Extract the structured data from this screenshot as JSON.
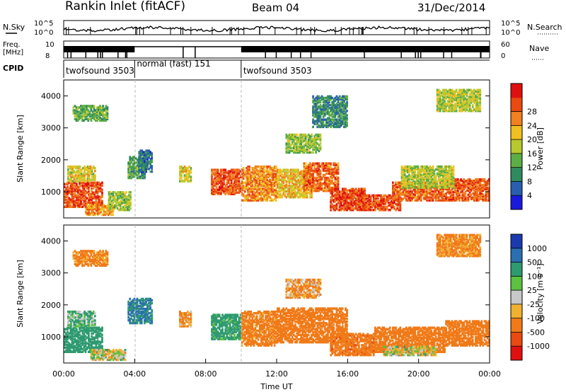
{
  "header": {
    "station": "Rankin Inlet (fitACF)",
    "beam": "Beam 04",
    "date": "31/Dec/2014"
  },
  "panels": {
    "nsky": {
      "label": "N.Sky",
      "tick_top": "10^5",
      "tick_bottom": "10^0",
      "right_tick_top": "10^5",
      "right_tick_bottom": "10^0",
      "right_label": "N.Search"
    },
    "freq": {
      "label_line1": "Freq.",
      "label_line2": "[MHz]",
      "tick_top": "10",
      "tick_bottom": "8",
      "right_tick_top": "60",
      "right_tick_bottom": "0",
      "right_label": "Nave"
    },
    "cpid": {
      "label": "CPID",
      "modes": [
        {
          "text": "twofsound 3503",
          "start_h": 0.0
        },
        {
          "text": "normal (fast) 151",
          "start_h": 4.0
        },
        {
          "text": "twofsound 3503",
          "start_h": 10.0
        }
      ]
    }
  },
  "axes": {
    "y_label": "Slant Range [km]",
    "y_ticks": [
      "1000",
      "2000",
      "3000",
      "4000"
    ],
    "x_label": "Time UT",
    "x_ticks": [
      "00:00",
      "04:00",
      "08:00",
      "12:00",
      "16:00",
      "20:00",
      "00:00"
    ]
  },
  "colorbars": {
    "power": {
      "label": "Power [dB]",
      "ticks": [
        "4",
        "8",
        "12",
        "16",
        "20",
        "24",
        "28"
      ],
      "colors": [
        "#1a1adc",
        "#2a5fb0",
        "#2f8a60",
        "#5cad45",
        "#b8c830",
        "#f0c020",
        "#f08020",
        "#e84a10",
        "#e01010"
      ]
    },
    "velocity": {
      "label": "Velocity [m s⁻¹]",
      "ticks": [
        "1000",
        "500",
        "100",
        "25",
        "-25",
        "-100",
        "-500",
        "-1000"
      ],
      "colors": [
        "#1a3ab0",
        "#2a6fb0",
        "#2f9a70",
        "#5cc040",
        "#c8c8c8",
        "#f0b030",
        "#f07a18",
        "#e84a10",
        "#e01010"
      ]
    }
  },
  "chart_data": [
    {
      "type": "heatmap",
      "title": "Power [dB]",
      "xlabel": "Time UT",
      "ylabel": "Slant Range [km]",
      "xlim_hours": [
        0,
        24
      ],
      "ylim_km": [
        180,
        4500
      ],
      "regions": [
        {
          "t": [
            0.0,
            2.2
          ],
          "r": [
            500,
            1300
          ],
          "v": 28
        },
        {
          "t": [
            0.2,
            1.8
          ],
          "r": [
            1300,
            1800
          ],
          "v": 18
        },
        {
          "t": [
            0.5,
            2.5
          ],
          "r": [
            3200,
            3700
          ],
          "v": 12
        },
        {
          "t": [
            1.2,
            2.8
          ],
          "r": [
            250,
            600
          ],
          "v": 24
        },
        {
          "t": [
            2.5,
            3.8
          ],
          "r": [
            400,
            1000
          ],
          "v": 14
        },
        {
          "t": [
            3.6,
            4.6
          ],
          "r": [
            1400,
            2100
          ],
          "v": 10
        },
        {
          "t": [
            4.2,
            5.0
          ],
          "r": [
            1600,
            2300
          ],
          "v": 6
        },
        {
          "t": [
            6.5,
            7.2
          ],
          "r": [
            1300,
            1800
          ],
          "v": 18
        },
        {
          "t": [
            8.3,
            10.0
          ],
          "r": [
            900,
            1700
          ],
          "v": 27
        },
        {
          "t": [
            10.0,
            12.0
          ],
          "r": [
            700,
            1800
          ],
          "v": 24
        },
        {
          "t": [
            12.0,
            14.0
          ],
          "r": [
            800,
            1700
          ],
          "v": 20
        },
        {
          "t": [
            13.5,
            15.5
          ],
          "r": [
            1000,
            1900
          ],
          "v": 26
        },
        {
          "t": [
            15.0,
            17.0
          ],
          "r": [
            400,
            1100
          ],
          "v": 28
        },
        {
          "t": [
            16.5,
            19.0
          ],
          "r": [
            400,
            900
          ],
          "v": 28
        },
        {
          "t": [
            18.5,
            21.5
          ],
          "r": [
            700,
            1300
          ],
          "v": 26
        },
        {
          "t": [
            21.5,
            24.0
          ],
          "r": [
            700,
            1400
          ],
          "v": 27
        },
        {
          "t": [
            19.0,
            22.0
          ],
          "r": [
            1100,
            1800
          ],
          "v": 16
        },
        {
          "t": [
            21.0,
            23.5
          ],
          "r": [
            3500,
            4200
          ],
          "v": 16
        },
        {
          "t": [
            14.0,
            16.0
          ],
          "r": [
            3000,
            4000
          ],
          "v": 8
        },
        {
          "t": [
            12.5,
            14.5
          ],
          "r": [
            2200,
            2800
          ],
          "v": 14
        }
      ]
    },
    {
      "type": "heatmap",
      "title": "Velocity [m s⁻¹]",
      "xlabel": "Time UT",
      "ylabel": "Slant Range [km]",
      "xlim_hours": [
        0,
        24
      ],
      "ylim_km": [
        180,
        4500
      ],
      "regions": [
        {
          "t": [
            0.0,
            2.2
          ],
          "r": [
            500,
            1300
          ],
          "v": 300
        },
        {
          "t": [
            0.2,
            1.8
          ],
          "r": [
            1300,
            1800
          ],
          "v": 100
        },
        {
          "t": [
            0.5,
            2.5
          ],
          "r": [
            3200,
            3700
          ],
          "v": -150
        },
        {
          "t": [
            1.5,
            3.5
          ],
          "r": [
            250,
            600
          ],
          "v": 0
        },
        {
          "t": [
            3.6,
            5.0
          ],
          "r": [
            1400,
            2200
          ],
          "v": 500
        },
        {
          "t": [
            6.5,
            7.2
          ],
          "r": [
            1300,
            1800
          ],
          "v": -100
        },
        {
          "t": [
            8.3,
            10.0
          ],
          "r": [
            900,
            1700
          ],
          "v": 200
        },
        {
          "t": [
            10.0,
            12.0
          ],
          "r": [
            700,
            1800
          ],
          "v": -200
        },
        {
          "t": [
            12.0,
            16.0
          ],
          "r": [
            800,
            1900
          ],
          "v": -300
        },
        {
          "t": [
            15.0,
            17.5
          ],
          "r": [
            400,
            1100
          ],
          "v": -400
        },
        {
          "t": [
            17.5,
            21.5
          ],
          "r": [
            500,
            1300
          ],
          "v": -300
        },
        {
          "t": [
            18.0,
            21.0
          ],
          "r": [
            400,
            700
          ],
          "v": 0
        },
        {
          "t": [
            21.5,
            24.0
          ],
          "r": [
            700,
            1500
          ],
          "v": -250
        },
        {
          "t": [
            21.0,
            23.5
          ],
          "r": [
            3500,
            4200
          ],
          "v": -150
        },
        {
          "t": [
            12.5,
            14.5
          ],
          "r": [
            2200,
            2800
          ],
          "v": -100
        }
      ]
    }
  ]
}
